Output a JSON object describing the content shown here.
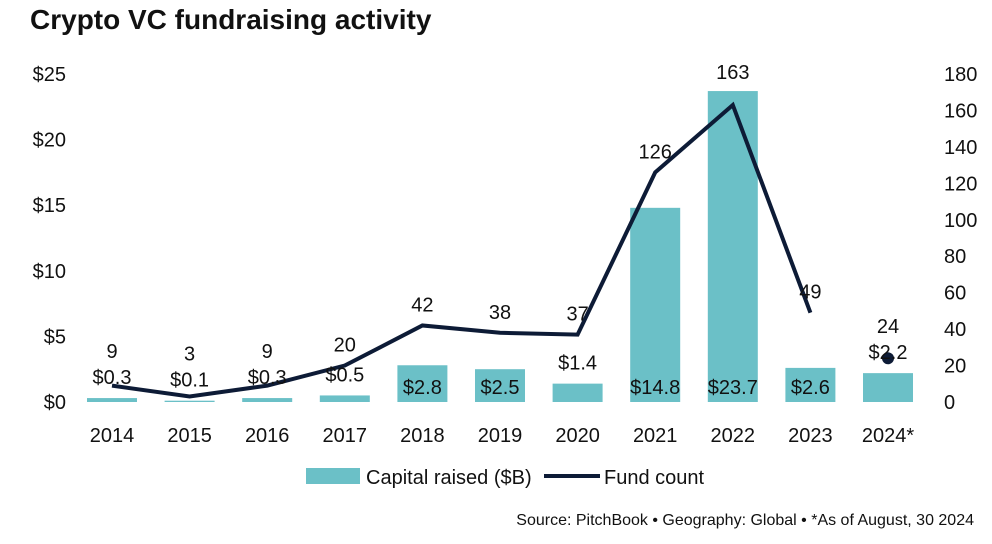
{
  "title": "Crypto VC fundraising activity",
  "source": "Source: PitchBook  •  Geography: Global  •  *As of August, 30 2024",
  "colors": {
    "bar": "#6bc0c7",
    "line": "#0d1b36",
    "text": "#111111"
  },
  "chart_data": {
    "type": "bar",
    "categories": [
      "2014",
      "2015",
      "2016",
      "2017",
      "2018",
      "2019",
      "2020",
      "2021",
      "2022",
      "2023",
      "2024*"
    ],
    "series": [
      {
        "name": "Capital raised ($B)",
        "type": "bar",
        "axis": "left",
        "values": [
          0.3,
          0.1,
          0.3,
          0.5,
          2.8,
          2.5,
          1.4,
          14.8,
          23.7,
          2.6,
          2.2
        ],
        "labels": [
          "$0.3",
          "$0.1",
          "$0.3",
          "$0.5",
          "$2.8",
          "$2.5",
          "$1.4",
          "$14.8",
          "$23.7",
          "$2.6",
          "$2.2"
        ]
      },
      {
        "name": "Fund count",
        "type": "line",
        "axis": "right",
        "values": [
          9,
          3,
          9,
          20,
          42,
          38,
          37,
          126,
          163,
          49,
          24
        ],
        "labels": [
          "9",
          "3",
          "9",
          "20",
          "42",
          "38",
          "37",
          "126",
          "163",
          "49",
          "24"
        ]
      }
    ],
    "y_left": {
      "min": 0,
      "max": 25,
      "ticks": [
        "$0",
        "$5",
        "$10",
        "$15",
        "$20",
        "$25"
      ]
    },
    "y_right": {
      "min": 0,
      "max": 180,
      "ticks": [
        "0",
        "20",
        "40",
        "60",
        "80",
        "100",
        "120",
        "140",
        "160",
        "180"
      ]
    },
    "legend": {
      "placement": "bottom-center",
      "items": [
        "Capital raised ($B)",
        "Fund count"
      ]
    },
    "grid": false,
    "notes": "2024* fund count is shown as a standalone marker, not connected to the line"
  }
}
